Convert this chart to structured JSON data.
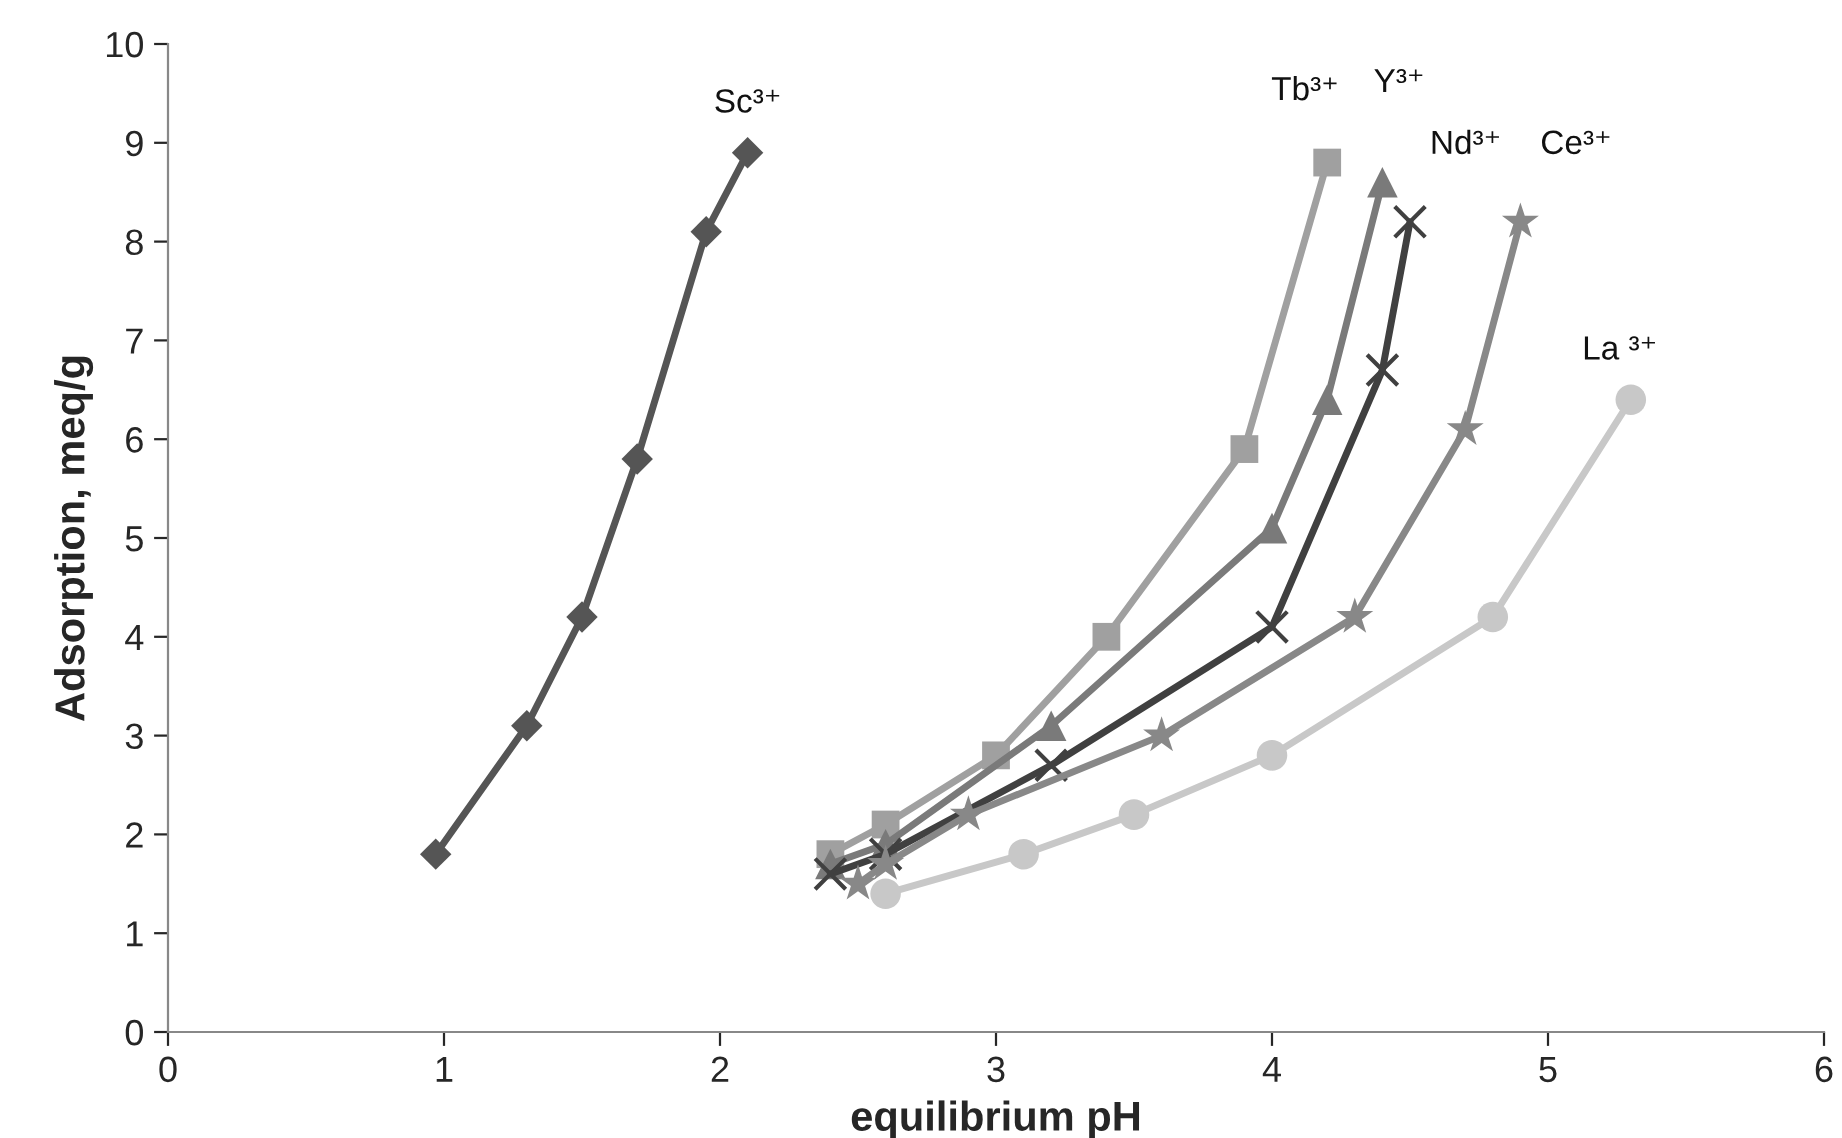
{
  "chart_data": {
    "type": "line",
    "xlabel": "equilibrium pH",
    "ylabel": "Adsorption, meq/g",
    "xlim": [
      0,
      6
    ],
    "xticks": [
      0,
      1,
      2,
      3,
      4,
      5,
      6
    ],
    "ylim": [
      0,
      10
    ],
    "yticks": [
      0,
      1,
      2,
      3,
      4,
      5,
      6,
      7,
      8,
      9,
      10
    ],
    "grid": false,
    "legend": false,
    "series": [
      {
        "name": "Sc³⁺",
        "color": "#555555",
        "marker": "diamond",
        "x": [
          0.97,
          1.3,
          1.5,
          1.7,
          1.95,
          2.1
        ],
        "values": [
          1.8,
          3.1,
          4.2,
          5.8,
          8.1,
          8.9
        ]
      },
      {
        "name": "Tb³⁺",
        "color": "#a0a0a0",
        "marker": "square",
        "x": [
          2.4,
          2.6,
          3.0,
          3.4,
          3.9,
          4.2
        ],
        "values": [
          1.8,
          2.1,
          2.8,
          4.0,
          5.9,
          8.8
        ]
      },
      {
        "name": "Y³⁺",
        "color": "#7a7a7a",
        "marker": "triangle",
        "x": [
          2.4,
          2.6,
          3.2,
          4.0,
          4.2,
          4.4
        ],
        "values": [
          1.7,
          1.9,
          3.1,
          5.1,
          6.4,
          8.6
        ]
      },
      {
        "name": "Nd³⁺",
        "color": "#404040",
        "marker": "cross",
        "x": [
          2.4,
          2.6,
          3.2,
          4.0,
          4.4,
          4.5
        ],
        "values": [
          1.6,
          1.8,
          2.7,
          4.1,
          6.7,
          8.2
        ]
      },
      {
        "name": "Ce³⁺",
        "color": "#888888",
        "marker": "star",
        "x": [
          2.5,
          2.6,
          2.9,
          3.6,
          4.3,
          4.7,
          4.9
        ],
        "values": [
          1.5,
          1.7,
          2.2,
          3.0,
          4.2,
          6.1,
          8.2
        ]
      },
      {
        "name": "La ³⁺",
        "color": "#c8c8c8",
        "marker": "circle",
        "x": [
          2.6,
          3.1,
          3.5,
          4.0,
          4.8,
          5.3
        ],
        "values": [
          1.4,
          1.8,
          2.2,
          2.8,
          4.2,
          6.4
        ]
      }
    ]
  }
}
